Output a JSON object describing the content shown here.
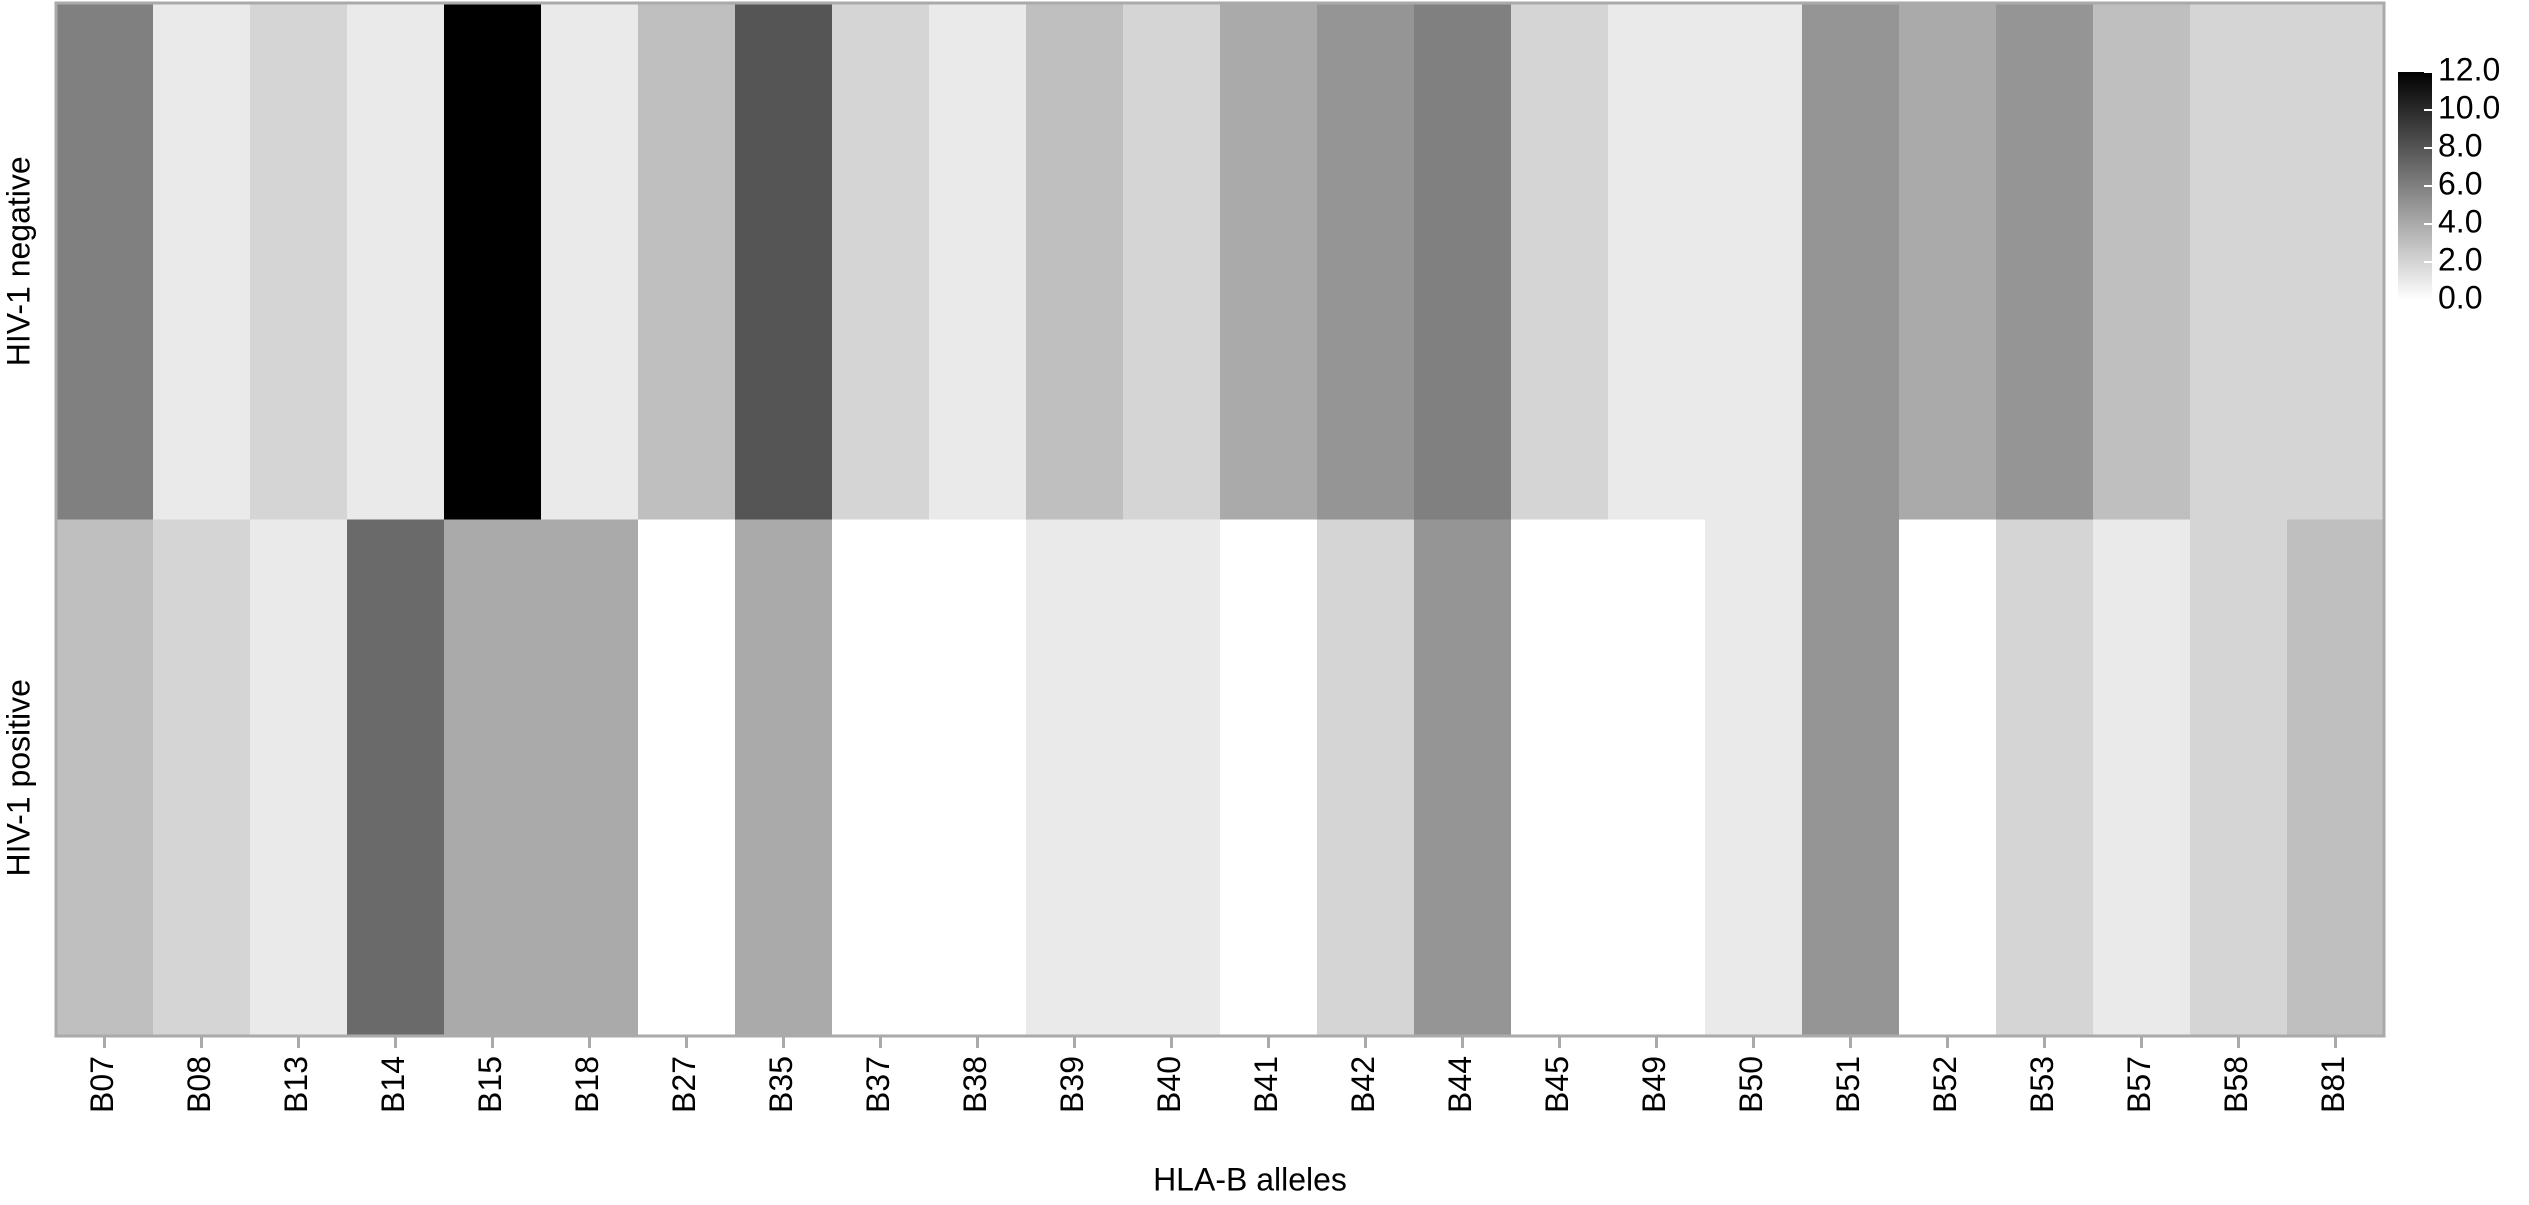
{
  "chart_data": {
    "type": "heatmap",
    "x_label": "HLA-B alleles",
    "categories": [
      "B07",
      "B08",
      "B13",
      "B14",
      "B15",
      "B18",
      "B27",
      "B35",
      "B37",
      "B38",
      "B39",
      "B40",
      "B41",
      "B42",
      "B44",
      "B45",
      "B49",
      "B50",
      "B51",
      "B52",
      "B53",
      "B57",
      "B58",
      "B81"
    ],
    "rows": [
      "HIV-1 negative",
      "HIV-1 positive"
    ],
    "values": [
      [
        6,
        1,
        2,
        1,
        12,
        1,
        3,
        8,
        2,
        1,
        3,
        2,
        4,
        5,
        6,
        2,
        1,
        1,
        5,
        4,
        5,
        3,
        2,
        2
      ],
      [
        3,
        2,
        1,
        7,
        4,
        4,
        0,
        4,
        0,
        0,
        1,
        1,
        0,
        2,
        5,
        0,
        0,
        1,
        5,
        0,
        2,
        1,
        2,
        3
      ]
    ],
    "colorbar_lim": [
      0,
      12
    ],
    "colorbar_ticks": [
      {
        "value": 0,
        "label": "0.0"
      },
      {
        "value": 2,
        "label": "2.0"
      },
      {
        "value": 4,
        "label": "4.0"
      },
      {
        "value": 6,
        "label": "6.0"
      },
      {
        "value": 8,
        "label": "8.0"
      },
      {
        "value": 10,
        "label": "10.0"
      },
      {
        "value": 12,
        "label": "12.0"
      }
    ],
    "colors": [
      "#ffffff",
      "#000000"
    ]
  }
}
